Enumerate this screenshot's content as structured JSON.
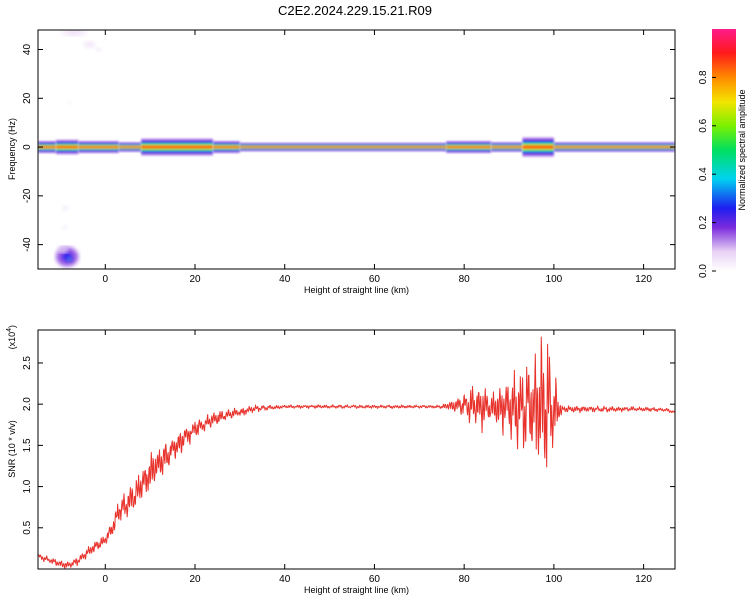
{
  "title": "C2E2.2024.229.15.21.R09",
  "chart_data": [
    {
      "type": "heatmap",
      "xlabel": "Height of straight line (km)",
      "ylabel": "Frequency (Hz)",
      "xlim": [
        -15,
        127
      ],
      "ylim": [
        -50,
        48
      ],
      "x_ticks": [
        0,
        20,
        40,
        60,
        80,
        100,
        120
      ],
      "x_tick_labels": [
        "0",
        "20",
        "40",
        "60",
        "80",
        "100",
        "120"
      ],
      "y_ticks": [
        -40,
        -20,
        0,
        20,
        40
      ],
      "y_tick_labels": [
        "-40",
        "-20",
        "0",
        "20",
        "40"
      ],
      "colorbar": {
        "label": "Normalized spectral amplitude",
        "range": [
          0,
          1
        ],
        "ticks": [
          0.0,
          0.2,
          0.4,
          0.6,
          0.8
        ],
        "tick_labels": [
          "0.0",
          "0.2",
          "0.4",
          "0.6",
          "0.8"
        ]
      },
      "band": {
        "center_frequency": 0,
        "core_amplitude": 1.0,
        "segments": [
          {
            "x0": -15,
            "x1": -11,
            "half_width": 2.5
          },
          {
            "x0": -11,
            "x1": -6,
            "half_width": 3.0
          },
          {
            "x0": -6,
            "x1": 3,
            "half_width": 2.5
          },
          {
            "x0": 3,
            "x1": 8,
            "half_width": 2.0
          },
          {
            "x0": 8,
            "x1": 24,
            "half_width": 3.5
          },
          {
            "x0": 24,
            "x1": 30,
            "half_width": 2.5
          },
          {
            "x0": 30,
            "x1": 76,
            "half_width": 1.8
          },
          {
            "x0": 76,
            "x1": 86,
            "half_width": 2.5
          },
          {
            "x0": 86,
            "x1": 93,
            "half_width": 2.0
          },
          {
            "x0": 93,
            "x1": 100,
            "half_width": 4.0
          },
          {
            "x0": 100,
            "x1": 127,
            "half_width": 2.0
          }
        ]
      },
      "blobs": [
        {
          "x": -8.5,
          "y": -45,
          "half_width_x": 2.5,
          "half_width_y": 4,
          "amplitude": 0.25
        },
        {
          "x": -8.0,
          "y": -46,
          "half_width_x": 0.8,
          "half_width_y": 1.2,
          "amplitude": 0.35
        },
        {
          "x": -9.5,
          "y": -42,
          "half_width_x": 1.2,
          "half_width_y": 1.5,
          "amplitude": 0.12
        },
        {
          "x": -7.0,
          "y": 47,
          "half_width_x": 3,
          "half_width_y": 1.5,
          "amplitude": 0.06
        },
        {
          "x": -3.5,
          "y": 42,
          "half_width_x": 1.5,
          "half_width_y": 1.5,
          "amplitude": 0.05
        },
        {
          "x": -1.5,
          "y": 40,
          "half_width_x": 0.8,
          "half_width_y": 0.8,
          "amplitude": 0.05
        },
        {
          "x": -9.0,
          "y": -25,
          "half_width_x": 0.8,
          "half_width_y": 1.2,
          "amplitude": 0.04
        },
        {
          "x": -9.0,
          "y": -33,
          "half_width_x": 0.6,
          "half_width_y": 1.0,
          "amplitude": 0.04
        },
        {
          "x": -8.0,
          "y": 18,
          "half_width_x": 0.5,
          "half_width_y": 1.0,
          "amplitude": 0.03
        }
      ]
    },
    {
      "type": "line",
      "xlabel": "Height of straight line (km)",
      "ylabel": "SNR (10 * v/v)",
      "y_multiplier_label": "(x10",
      "y_multiplier_exponent": "4",
      "y_multiplier_suffix": ")",
      "xlim": [
        -15,
        127
      ],
      "ylim": [
        0.0,
        2.9
      ],
      "x_ticks": [
        0,
        20,
        40,
        60,
        80,
        100,
        120
      ],
      "x_tick_labels": [
        "0",
        "20",
        "40",
        "60",
        "80",
        "100",
        "120"
      ],
      "y_ticks": [
        0.5,
        1.0,
        1.5,
        2.0,
        2.5
      ],
      "y_tick_labels": [
        "0.5",
        "1.0",
        "1.5",
        "2.0",
        "2.5"
      ],
      "line_color": "#e8322c",
      "series": [
        {
          "x": [
            -15,
            -12,
            -10,
            -8,
            -6,
            -4,
            -2,
            0,
            2,
            3,
            4,
            6,
            8,
            10,
            12,
            14,
            16,
            18,
            20,
            22,
            24,
            26,
            28,
            30,
            32,
            34,
            36,
            38,
            40,
            45,
            50,
            55,
            60,
            65,
            70,
            75,
            78,
            80,
            82,
            84,
            86,
            88,
            90,
            92,
            93,
            94,
            95,
            96,
            97,
            98,
            99,
            100,
            101,
            102,
            105,
            110,
            115,
            120,
            125,
            127
          ],
          "y": [
            0.15,
            0.1,
            0.06,
            0.05,
            0.1,
            0.2,
            0.28,
            0.35,
            0.55,
            0.7,
            0.75,
            0.85,
            1.0,
            1.15,
            1.3,
            1.38,
            1.5,
            1.6,
            1.7,
            1.76,
            1.82,
            1.85,
            1.88,
            1.9,
            1.93,
            1.95,
            1.96,
            1.96,
            1.97,
            1.97,
            1.97,
            1.97,
            1.97,
            1.97,
            1.97,
            1.97,
            1.98,
            1.99,
            1.98,
            1.97,
            1.95,
            1.96,
            1.97,
            1.95,
            1.96,
            1.94,
            1.95,
            1.96,
            1.98,
            1.95,
            1.93,
            1.95,
            1.94,
            1.94,
            1.94,
            1.94,
            1.94,
            1.94,
            1.93,
            1.9
          ]
        }
      ],
      "noise_envelope": {
        "x": [
          -15,
          -5,
          0,
          5,
          10,
          15,
          20,
          30,
          40,
          75,
          78,
          80,
          82,
          84,
          86,
          88,
          90,
          92,
          94,
          96,
          97,
          98,
          99,
          100,
          101,
          102,
          127
        ],
        "amplitude": [
          0.04,
          0.05,
          0.08,
          0.18,
          0.22,
          0.18,
          0.1,
          0.05,
          0.02,
          0.02,
          0.08,
          0.14,
          0.25,
          0.28,
          0.15,
          0.3,
          0.35,
          0.45,
          0.55,
          0.7,
          0.8,
          0.85,
          0.8,
          0.5,
          0.2,
          0.04,
          0.02
        ]
      }
    }
  ]
}
